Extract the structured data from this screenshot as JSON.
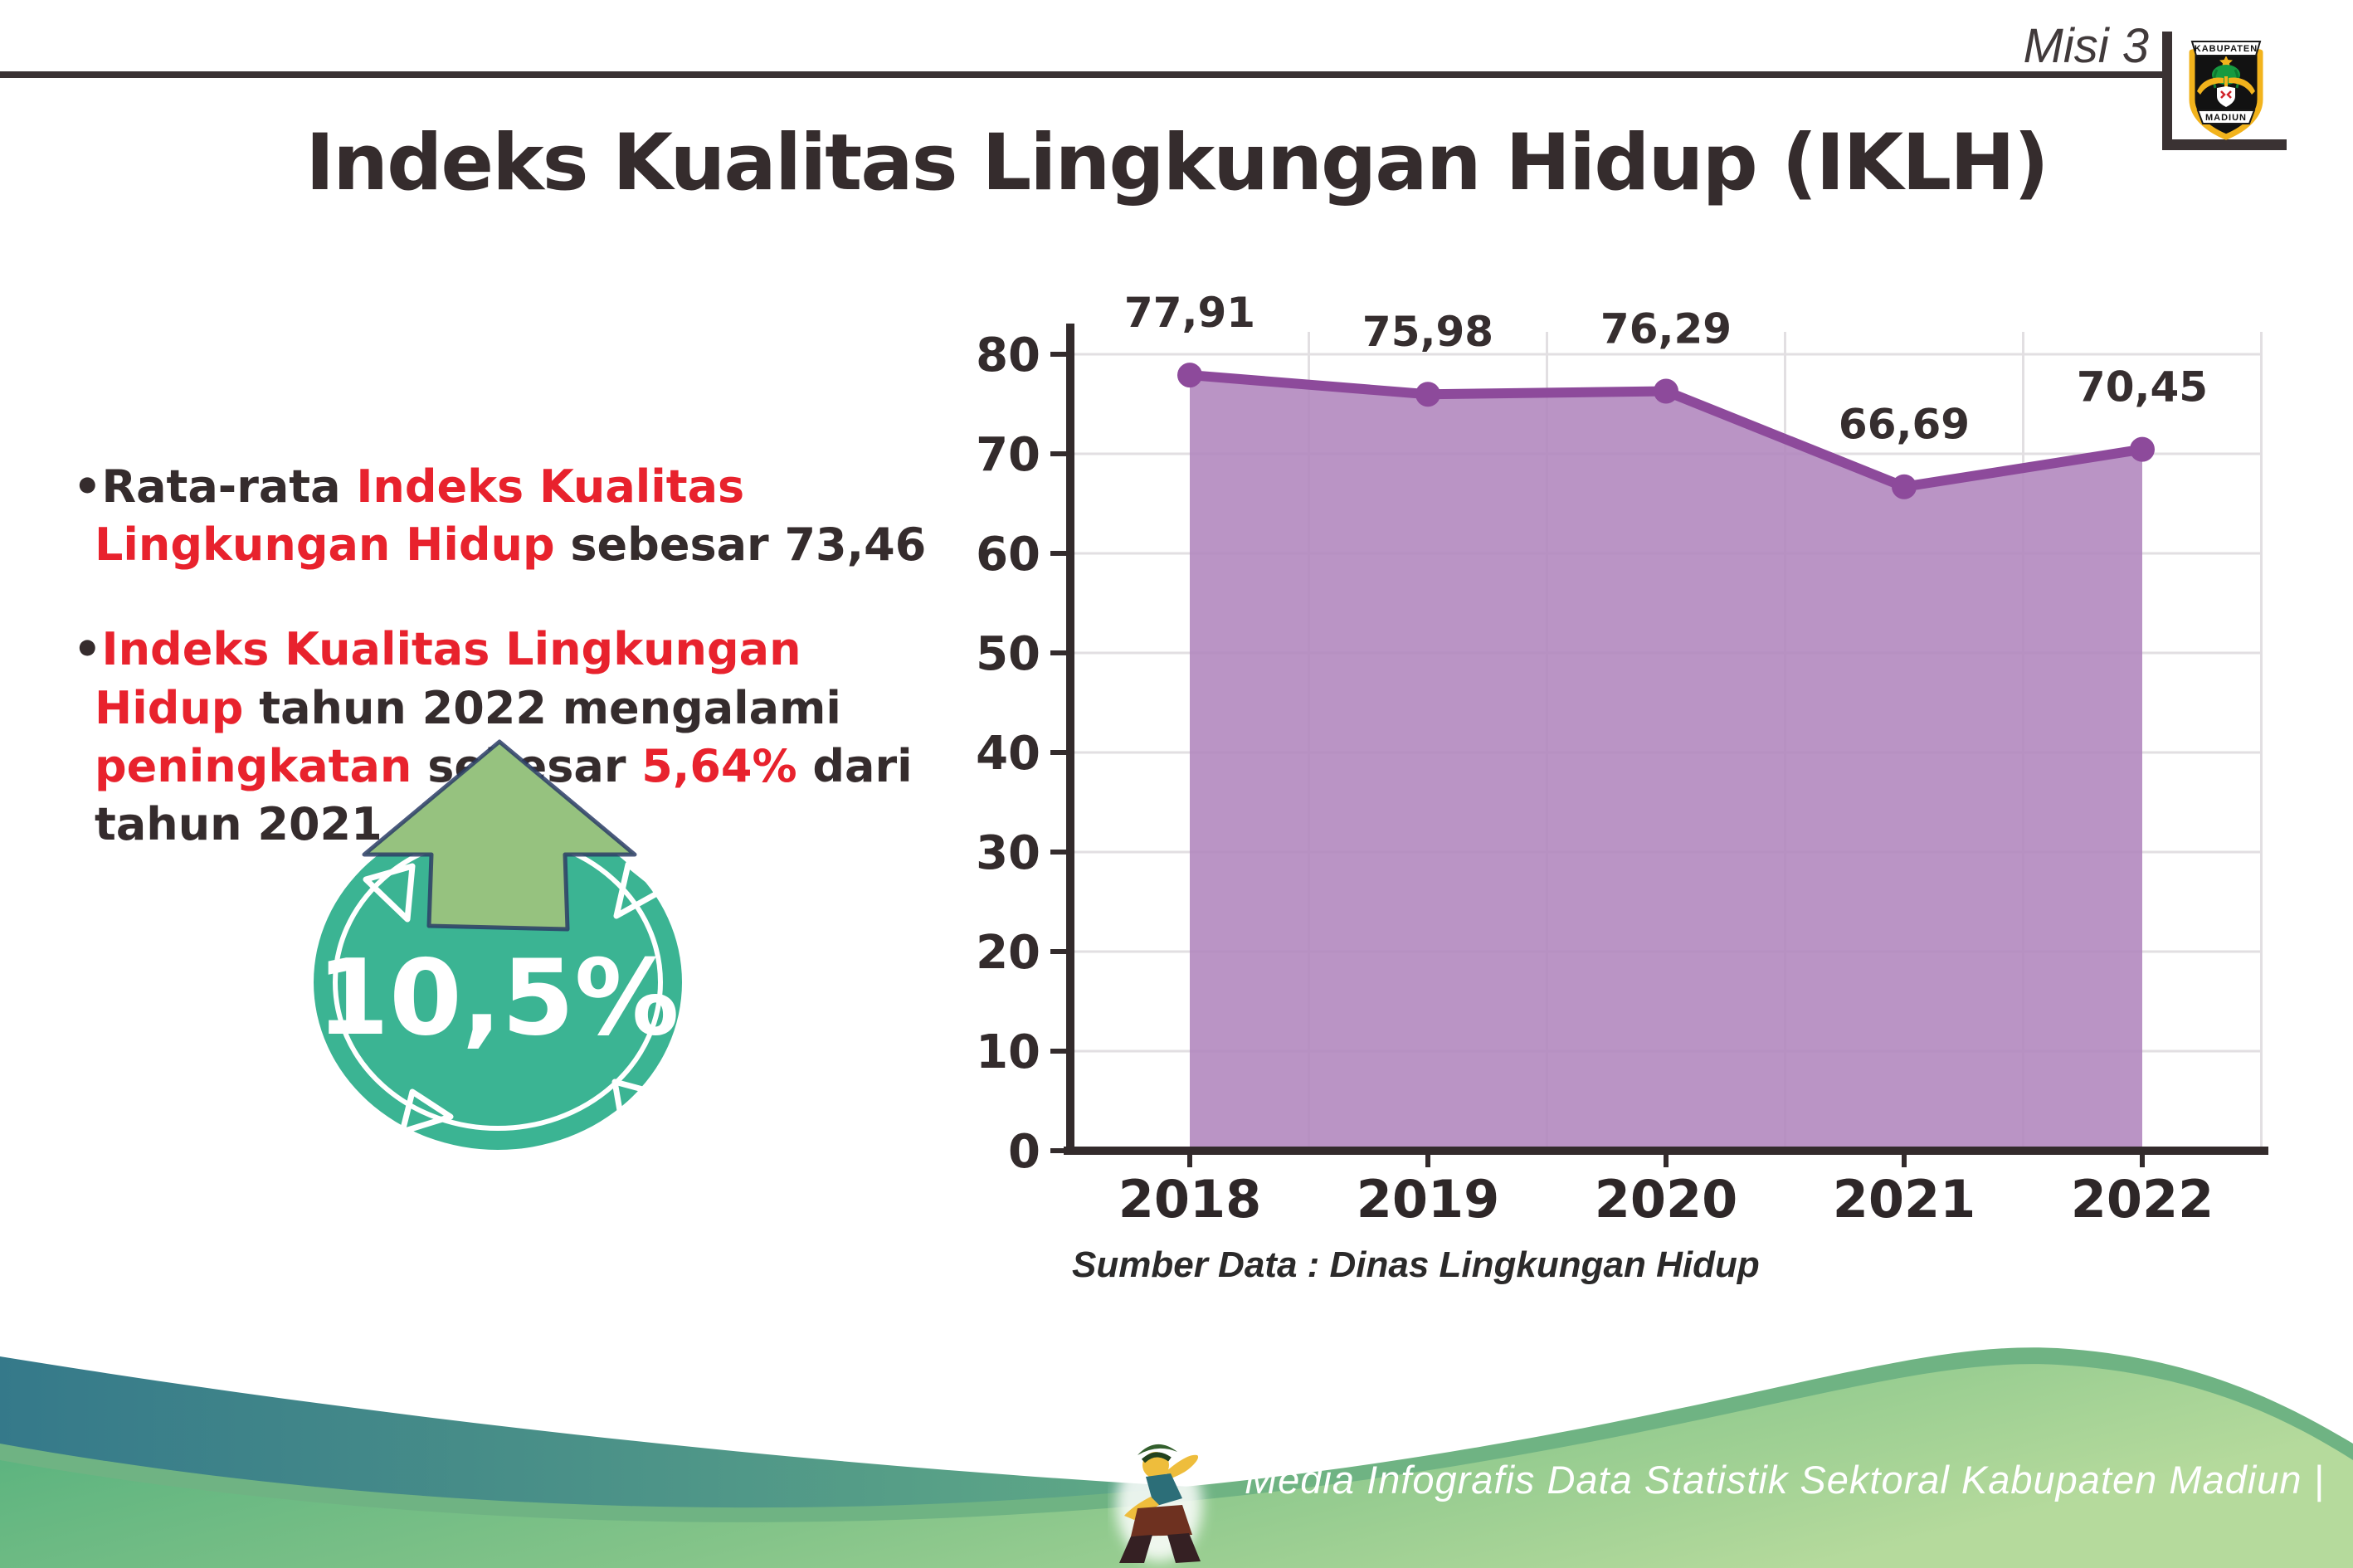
{
  "header": {
    "misi_label": "Misi 3",
    "logo": {
      "top_text": "KABUPATEN",
      "bottom_text": "MADIUN"
    }
  },
  "title": "Indeks Kualitas Lingkungan Hidup (IKLH)",
  "bullet_char": "•",
  "bullets": {
    "b1": {
      "s1": "Rata-rata ",
      "s2": "Indeks Kualitas Lingkungan Hidup",
      "s3": " sebesar 73,46"
    },
    "b2": {
      "s1": "Indeks Kualitas Lingkungan Hidup",
      "s2": " tahun 2022 mengalami ",
      "s3": "peningkatan",
      "s4": " sebesar ",
      "s5": "5,64%",
      "s6": " dari tahun 2021"
    }
  },
  "badge": {
    "value": "10,5%"
  },
  "chart_data": {
    "type": "area",
    "title": "",
    "x": [
      "2018",
      "2019",
      "2020",
      "2021",
      "2022"
    ],
    "values": [
      77.91,
      75.98,
      76.29,
      66.69,
      70.45
    ],
    "point_labels": [
      "77,91",
      "75,98",
      "76,29",
      "66,69",
      "70,45"
    ],
    "ylim": [
      0,
      80
    ],
    "yticks": [
      0,
      10,
      20,
      30,
      40,
      50,
      60,
      70,
      80
    ],
    "grid": true,
    "legend": "none",
    "line_color": "#8d4a9b",
    "fill_color": "#b388bf",
    "source_note": "Sumber Data : Dinas Lingkungan Hidup"
  },
  "footer": {
    "credit": "Media Infografis Data Statistik Sektoral Kabupaten Madiun |"
  },
  "colors": {
    "red": "#e8222d",
    "text_dark": "#332b2c",
    "teal_badge": "#3bb493",
    "arrow_green": "#96c27f",
    "footer_teal": "#35798a",
    "footer_green": "#54ae7e"
  }
}
